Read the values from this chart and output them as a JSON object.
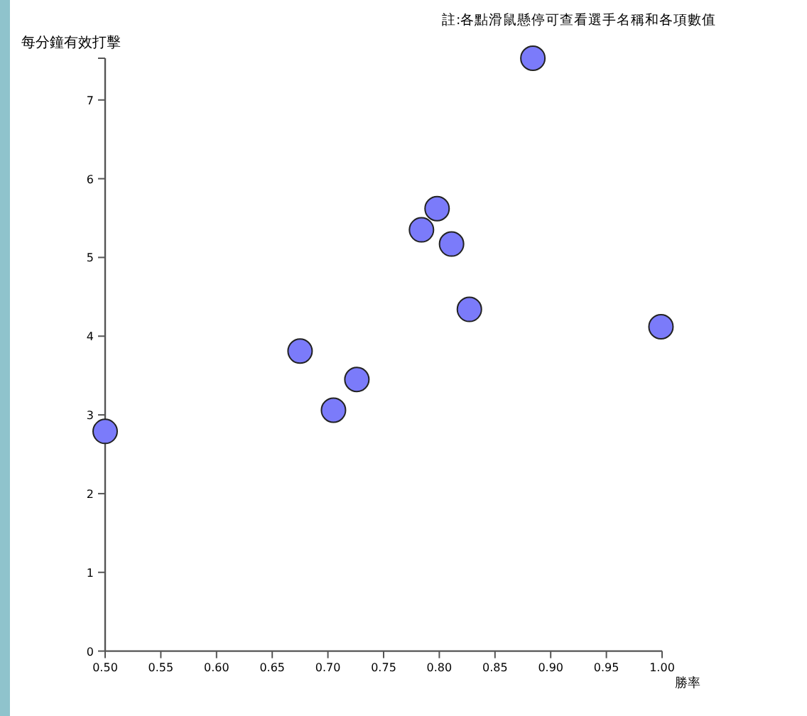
{
  "chart_data": {
    "type": "scatter",
    "xlabel": "勝率",
    "ylabel": "每分鐘有效打擊",
    "annotations": [
      "註:各點滑鼠懸停可查看選手名稱和各項數值"
    ],
    "x": [
      0.5,
      0.675,
      0.705,
      0.726,
      0.784,
      0.798,
      0.811,
      0.827,
      0.884,
      0.999
    ],
    "values": [
      2.79,
      3.81,
      3.06,
      3.45,
      5.35,
      5.62,
      5.17,
      4.34,
      7.53,
      4.12
    ],
    "color": "#7b7bfa",
    "marker": "circle",
    "grid": false,
    "legend": false,
    "xlim": [
      0.5,
      1.0
    ],
    "xticks": [
      {
        "value": 0.5,
        "label": "0.50"
      },
      {
        "value": 0.55,
        "label": "0.55"
      },
      {
        "value": 0.6,
        "label": "0.60"
      },
      {
        "value": 0.65,
        "label": "0.65"
      },
      {
        "value": 0.7,
        "label": "0.70"
      },
      {
        "value": 0.75,
        "label": "0.75"
      },
      {
        "value": 0.8,
        "label": "0.80"
      },
      {
        "value": 0.85,
        "label": "0.85"
      },
      {
        "value": 0.9,
        "label": "0.90"
      },
      {
        "value": 0.95,
        "label": "0.95"
      },
      {
        "value": 1.0,
        "label": "1.00"
      }
    ],
    "ylim": [
      0,
      7.53
    ],
    "yticks": [
      0,
      1,
      2,
      3,
      4,
      5,
      6,
      7
    ]
  }
}
